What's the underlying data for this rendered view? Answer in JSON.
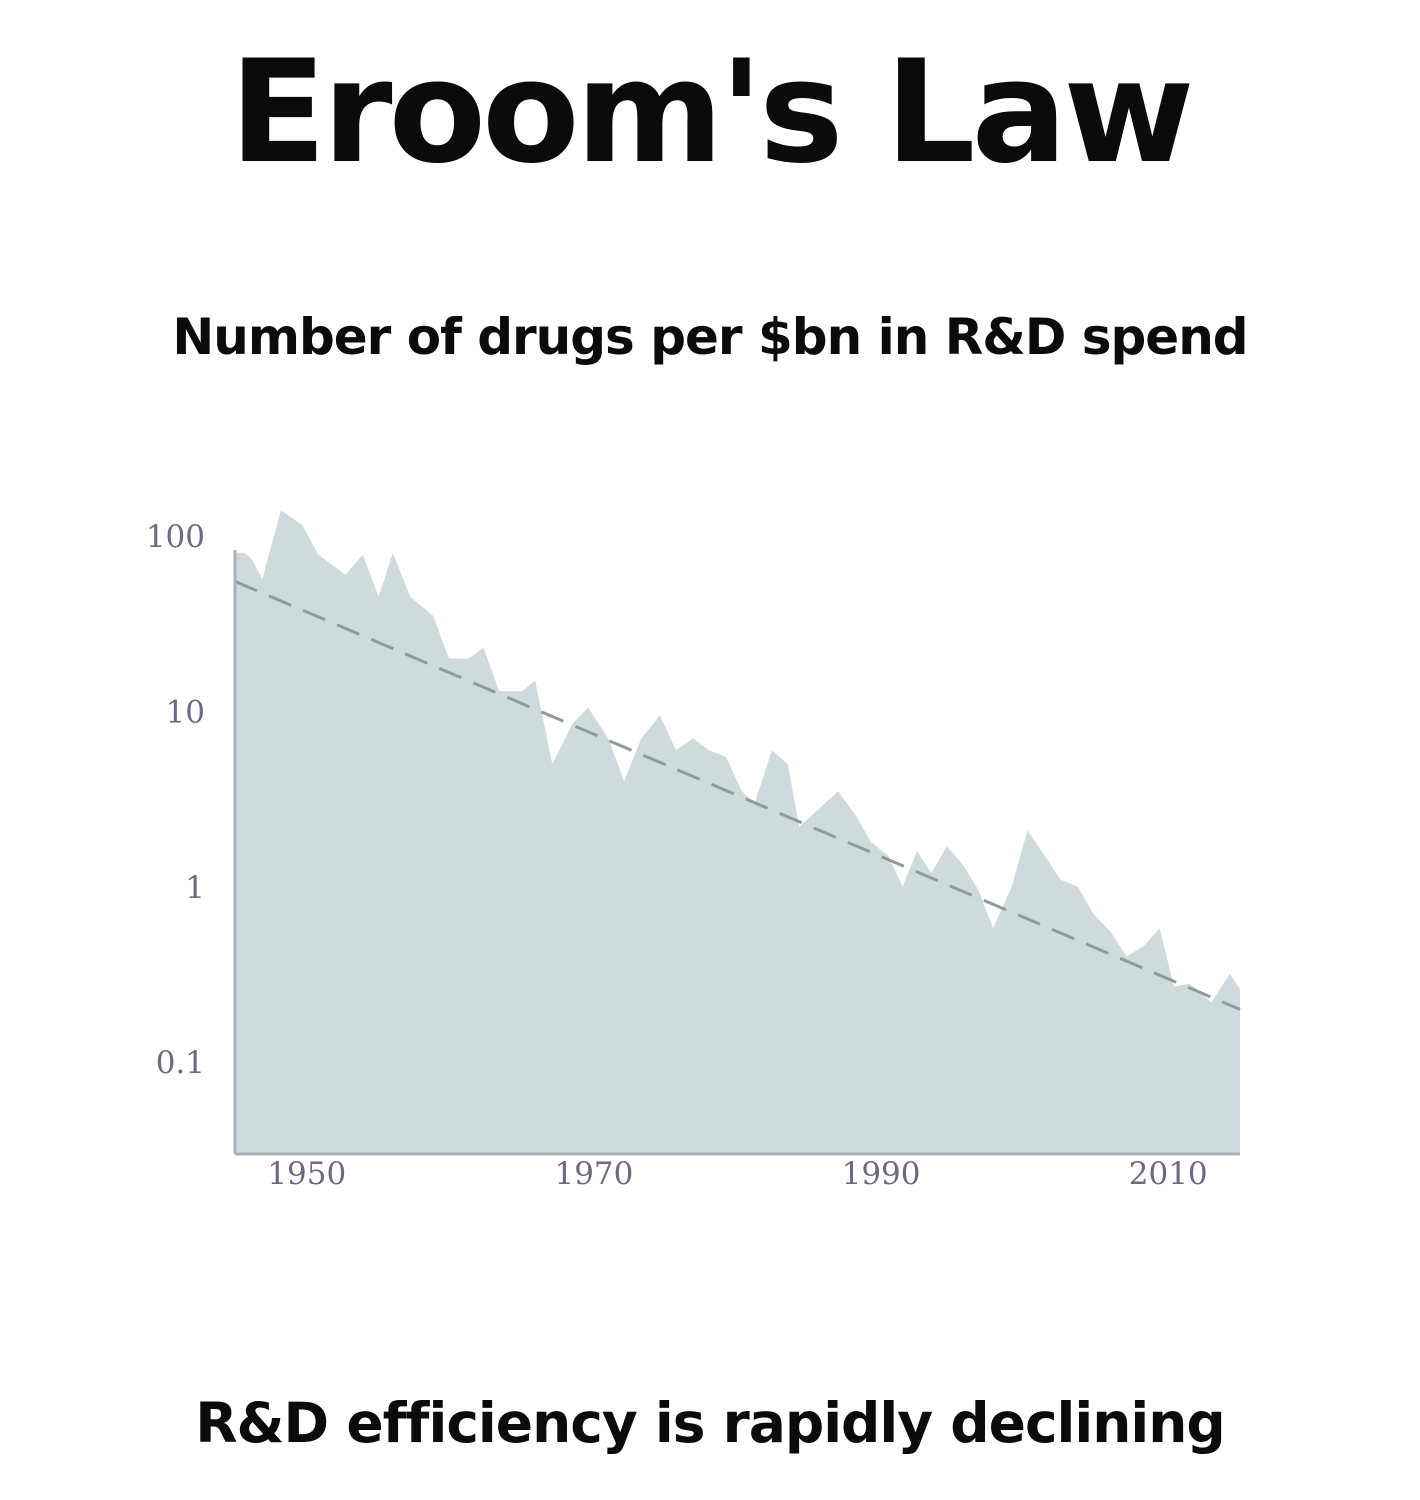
{
  "title": "Eroom's Law",
  "subtitle": "Number of drugs per $bn in R&D spend",
  "caption": "R&D efficiency is rapidly declining",
  "chart_data": {
    "type": "area",
    "yscale": "log",
    "ylim": [
      0.03,
      160
    ],
    "xlim": [
      1945,
      2015
    ],
    "y_ticks": [
      {
        "value": 100,
        "label": "100"
      },
      {
        "value": 10,
        "label": "10"
      },
      {
        "value": 1,
        "label": "1"
      },
      {
        "value": 0.1,
        "label": "0.1"
      }
    ],
    "x_ticks": [
      {
        "value": 1950,
        "label": "1950"
      },
      {
        "value": 1970,
        "label": "1970"
      },
      {
        "value": 1990,
        "label": "1990"
      },
      {
        "value": 2010,
        "label": "2010"
      }
    ],
    "grid": false,
    "colors": {
      "area_fill": "#cfdadc",
      "trend_line": "#909a9c",
      "axis": "#a9b3b5",
      "tick_label": "#6a6a80"
    },
    "series": [
      {
        "type": "area",
        "points": [
          [
            1945,
            80
          ],
          [
            1945.6,
            80
          ],
          [
            1946.1,
            75
          ],
          [
            1946.9,
            57
          ],
          [
            1948.2,
            140
          ],
          [
            1949.7,
            115
          ],
          [
            1950.8,
            78
          ],
          [
            1952.7,
            60
          ],
          [
            1953.9,
            78
          ],
          [
            1955,
            45
          ],
          [
            1956,
            80
          ],
          [
            1957.2,
            45
          ],
          [
            1958.8,
            35
          ],
          [
            1959.9,
            20
          ],
          [
            1961.3,
            20
          ],
          [
            1962.3,
            23
          ],
          [
            1963.4,
            13
          ],
          [
            1965,
            13
          ],
          [
            1965.9,
            15
          ],
          [
            1967.1,
            5
          ],
          [
            1968.5,
            8.5
          ],
          [
            1969.6,
            10.5
          ],
          [
            1971,
            7
          ],
          [
            1972.1,
            4
          ],
          [
            1973.3,
            7
          ],
          [
            1974.6,
            9.5
          ],
          [
            1975.7,
            6
          ],
          [
            1976.9,
            7
          ],
          [
            1978,
            6
          ],
          [
            1979.2,
            5.5
          ],
          [
            1980.3,
            3.5
          ],
          [
            1981.2,
            3
          ],
          [
            1982.4,
            6
          ],
          [
            1983.5,
            5
          ],
          [
            1984.3,
            2.2
          ],
          [
            1985.5,
            2.7
          ],
          [
            1987,
            3.5
          ],
          [
            1988.3,
            2.5
          ],
          [
            1989.3,
            1.8
          ],
          [
            1990.5,
            1.5
          ],
          [
            1991.5,
            1
          ],
          [
            1992.5,
            1.6
          ],
          [
            1993.5,
            1.2
          ],
          [
            1994.6,
            1.7
          ],
          [
            1995.8,
            1.3
          ],
          [
            1996.8,
            0.95
          ],
          [
            1997.8,
            0.58
          ],
          [
            1999.1,
            1
          ],
          [
            2000.2,
            2.1
          ],
          [
            2001.4,
            1.5
          ],
          [
            2002.5,
            1.1
          ],
          [
            2003.7,
            1
          ],
          [
            2004.8,
            0.7
          ],
          [
            2006,
            0.55
          ],
          [
            2007.1,
            0.4
          ],
          [
            2008.3,
            0.46
          ],
          [
            2009.4,
            0.58
          ],
          [
            2010.4,
            0.27
          ],
          [
            2011.5,
            0.28
          ],
          [
            2013,
            0.22
          ],
          [
            2014.3,
            0.32
          ],
          [
            2015,
            0.26
          ]
        ]
      },
      {
        "type": "trend_line",
        "style": "dashed",
        "points": [
          [
            1945,
            55
          ],
          [
            2015,
            0.2
          ]
        ]
      }
    ]
  }
}
